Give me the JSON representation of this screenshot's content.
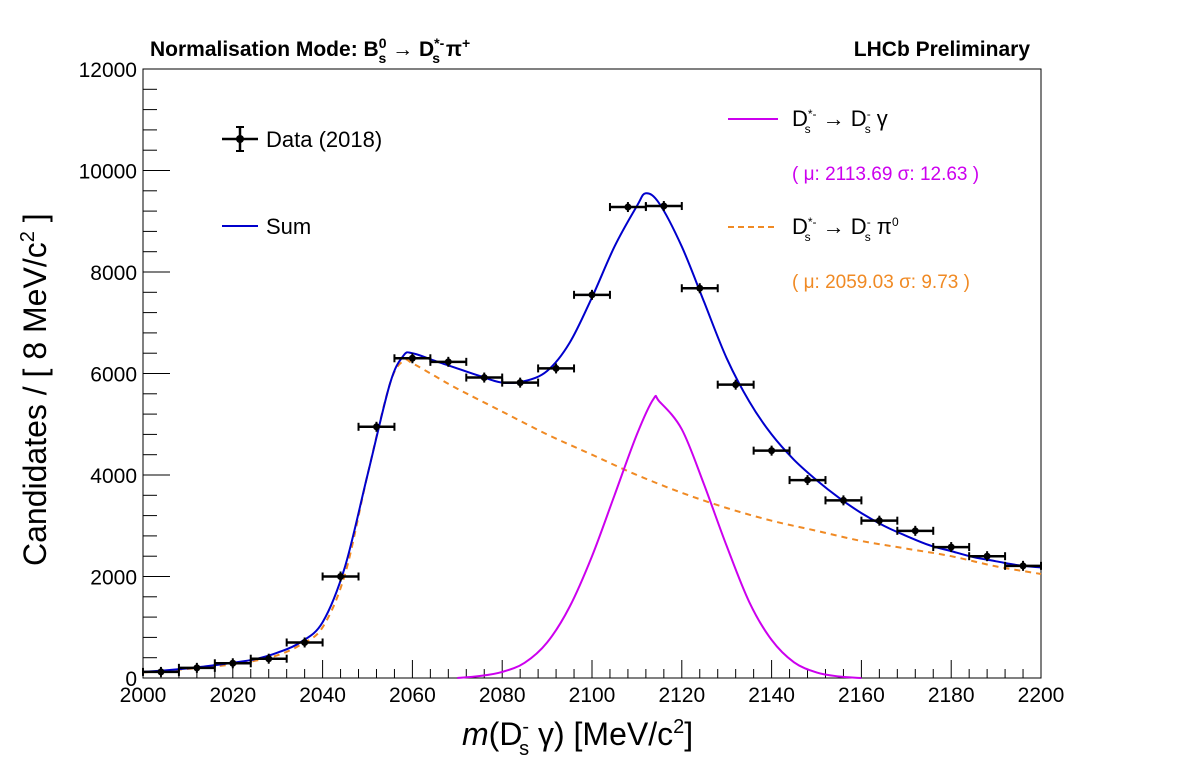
{
  "header": {
    "title_left": "Normalisation Mode:",
    "title_right": "LHCb Preliminary"
  },
  "legend": {
    "data_label": "Data (2018)",
    "sum_label": "Sum",
    "signal_params": "( μ: 2113.69  σ: 12.63 )",
    "bkg_params": "( μ: 2059.03  σ: 9.73 )"
  },
  "colors": {
    "data": "#000000",
    "sum": "#0000cc",
    "signal": "#cc00ee",
    "background": "#f08a24"
  },
  "chart_data": {
    "type": "line",
    "xlabel": "m(D_s^- γ) [MeV/c^2]",
    "ylabel": "Candidates / [ 8 MeV/c^2 ]",
    "xlim": [
      2000,
      2200
    ],
    "ylim": [
      0,
      12000
    ],
    "x_ticks": [
      2000,
      2020,
      2040,
      2060,
      2080,
      2100,
      2120,
      2140,
      2160,
      2180,
      2200
    ],
    "y_ticks": [
      0,
      2000,
      4000,
      6000,
      8000,
      10000,
      12000
    ],
    "grid": false,
    "legend_position": "top",
    "data_points": {
      "name": "Data (2018)",
      "x": [
        2004,
        2012,
        2020,
        2028,
        2036,
        2044,
        2052,
        2060,
        2068,
        2076,
        2084,
        2092,
        2100,
        2108,
        2116,
        2124,
        2132,
        2140,
        2148,
        2156,
        2164,
        2172,
        2180,
        2188,
        2196
      ],
      "y": [
        120,
        200,
        290,
        380,
        700,
        2000,
        4950,
        6300,
        6230,
        5920,
        5820,
        6100,
        7550,
        9280,
        9300,
        7680,
        5780,
        4480,
        3900,
        3500,
        3100,
        2900,
        2580,
        2400,
        2210
      ],
      "x_half_width": 4
    },
    "series": [
      {
        "name": "Sum",
        "x": [
          2000,
          2005,
          2010,
          2015,
          2020,
          2025,
          2030,
          2035,
          2040,
          2045,
          2050,
          2055,
          2058,
          2060,
          2065,
          2070,
          2075,
          2080,
          2085,
          2090,
          2095,
          2100,
          2105,
          2110,
          2112,
          2115,
          2120,
          2125,
          2130,
          2135,
          2140,
          2145,
          2150,
          2155,
          2160,
          2165,
          2170,
          2175,
          2180,
          2185,
          2190,
          2195,
          2200
        ],
        "y": [
          120,
          150,
          190,
          240,
          300,
          370,
          500,
          700,
          1100,
          2200,
          4000,
          5800,
          6350,
          6400,
          6250,
          6100,
          5950,
          5820,
          5850,
          6050,
          6600,
          7500,
          8500,
          9300,
          9550,
          9350,
          8500,
          7400,
          6300,
          5450,
          4800,
          4300,
          3900,
          3550,
          3250,
          3000,
          2800,
          2620,
          2500,
          2380,
          2300,
          2220,
          2180
        ]
      },
      {
        "name": "D_s^*- → D_s^- γ",
        "x": [
          2070,
          2075,
          2080,
          2085,
          2090,
          2095,
          2100,
          2105,
          2110,
          2113.69,
          2115,
          2120,
          2125,
          2130,
          2135,
          2140,
          2145,
          2150,
          2155,
          2160
        ],
        "y": [
          0,
          40,
          120,
          300,
          700,
          1400,
          2400,
          3600,
          4800,
          5500,
          5450,
          4900,
          3800,
          2600,
          1500,
          750,
          310,
          110,
          30,
          0
        ]
      },
      {
        "name": "D_s^*- → D_s^- π^0",
        "x": [
          2000,
          2005,
          2010,
          2015,
          2020,
          2025,
          2030,
          2035,
          2040,
          2045,
          2050,
          2055,
          2058,
          2060,
          2065,
          2070,
          2080,
          2090,
          2100,
          2110,
          2120,
          2130,
          2140,
          2150,
          2160,
          2170,
          2180,
          2190,
          2200
        ],
        "y": [
          110,
          140,
          180,
          220,
          270,
          340,
          450,
          650,
          1000,
          2050,
          4000,
          5800,
          6250,
          6200,
          5950,
          5700,
          5250,
          4800,
          4400,
          4000,
          3650,
          3350,
          3100,
          2900,
          2700,
          2550,
          2400,
          2200,
          2050
        ]
      }
    ]
  }
}
